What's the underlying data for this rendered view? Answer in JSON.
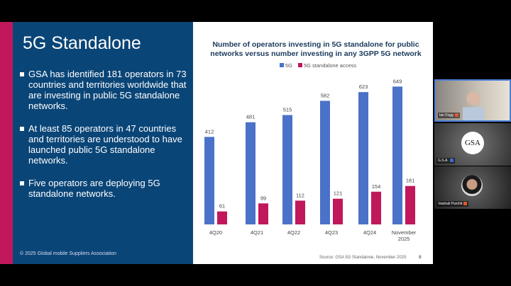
{
  "slide": {
    "title": "5G Standalone",
    "bullets": [
      "GSA has identified 181 operators in 73 countries and territories worldwide that are investing in public 5G standalone networks.",
      "At least 85 operators in 47 countries and territories are understood to have launched public 5G standalone networks.",
      "Five operators are deploying 5G standalone networks."
    ],
    "copyright": "© 2025 Global mobile Suppliers Association",
    "source": "Source: GSA 5G Standalone, November 2025",
    "page_number": "8"
  },
  "chart_data": {
    "type": "bar",
    "title": "Number of operators investing in 5G standalone for public networks versus number investing in any 3GPP 5G network",
    "categories": [
      "4Q20",
      "4Q21",
      "4Q22",
      "4Q23",
      "4Q24",
      "November 2025"
    ],
    "series": [
      {
        "name": "5G",
        "color": "#4a72c8",
        "values": [
          412,
          481,
          515,
          582,
          623,
          649
        ]
      },
      {
        "name": "5G standalone access",
        "color": "#c0185a",
        "values": [
          61,
          99,
          112,
          121,
          154,
          181
        ]
      }
    ],
    "ylim": [
      0,
      700
    ],
    "grid": false,
    "legend": "top"
  },
  "participants": [
    {
      "name": "Ian Fogg",
      "active": true
    },
    {
      "name": "G.S.A.",
      "logo": "GSA"
    },
    {
      "name": "Vaishali Purohit"
    }
  ]
}
